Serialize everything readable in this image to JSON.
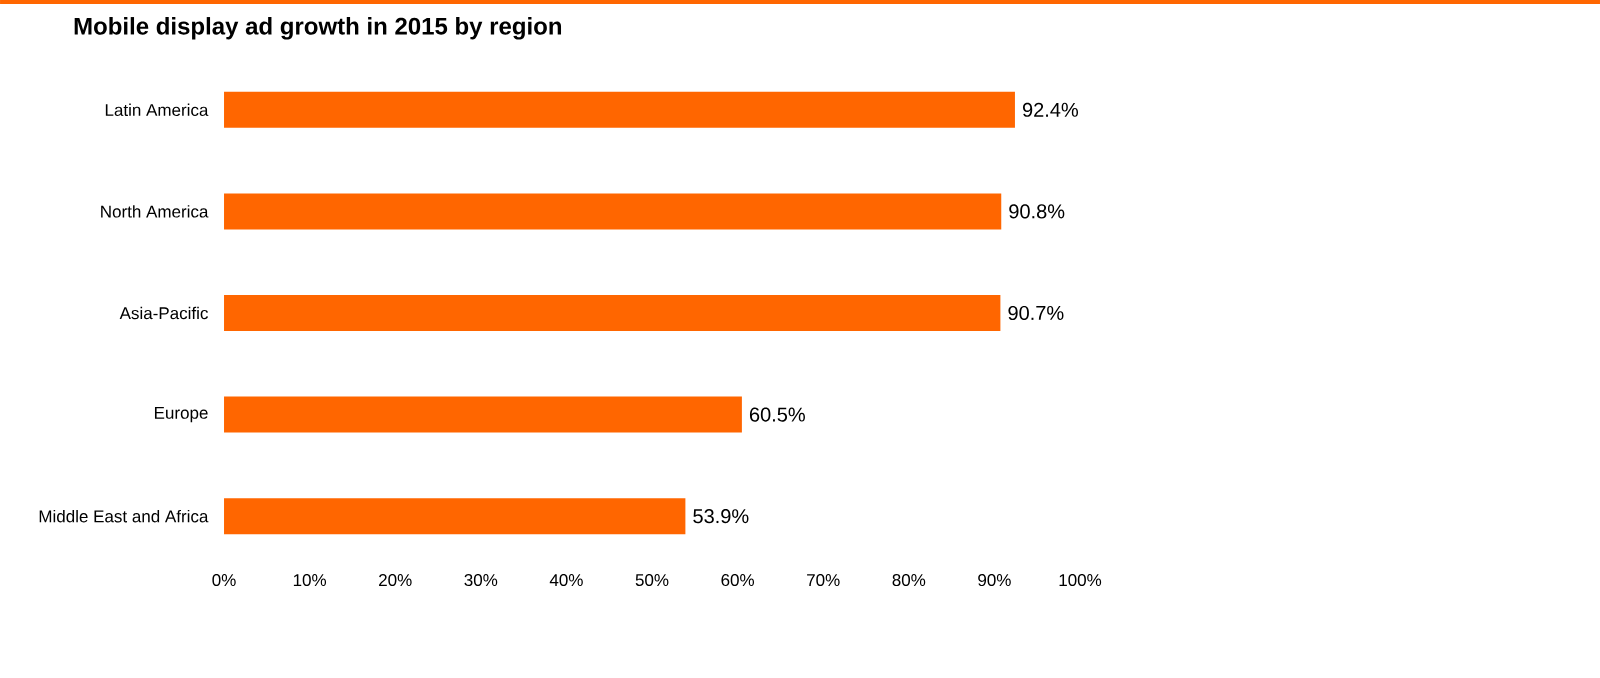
{
  "chart_data": {
    "type": "bar",
    "orientation": "horizontal",
    "title": "Mobile display ad growth in 2015 by region",
    "categories": [
      "Latin America",
      "North America",
      "Asia-Pacific",
      "Europe",
      "Middle East and Africa"
    ],
    "values": [
      92.4,
      90.8,
      90.7,
      60.5,
      53.9
    ],
    "value_labels": [
      "92.4%",
      "90.8%",
      "90.7%",
      "60.5%",
      "53.9%"
    ],
    "color": "#ff6600",
    "xlim": [
      0,
      100
    ],
    "xticks": [
      {
        "value": 0,
        "label": "0%"
      },
      {
        "value": 10,
        "label": "10%"
      },
      {
        "value": 20,
        "label": "20%"
      },
      {
        "value": 30,
        "label": "30%"
      },
      {
        "value": 40,
        "label": "40%"
      },
      {
        "value": 50,
        "label": "50%"
      },
      {
        "value": 60,
        "label": "60%"
      },
      {
        "value": 70,
        "label": "70%"
      },
      {
        "value": 80,
        "label": "80%"
      },
      {
        "value": 90,
        "label": "90%"
      },
      {
        "value": 100,
        "label": "100%"
      }
    ],
    "grid": false
  }
}
